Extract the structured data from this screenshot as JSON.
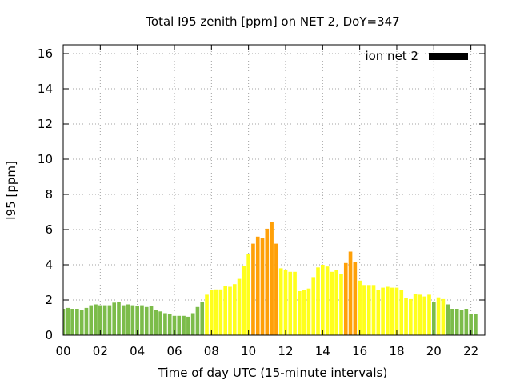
{
  "chart_data": {
    "type": "bar",
    "title": "Total I95 zenith [ppm] on NET 2, DoY=347",
    "xlabel": "Time of day UTC (15-minute intervals)",
    "ylabel": "I95 [ppm]",
    "xlim": [
      0,
      22.75
    ],
    "ylim": [
      0,
      16.5
    ],
    "x_ticks": [
      0,
      2,
      4,
      6,
      8,
      10,
      12,
      14,
      16,
      18,
      20,
      22
    ],
    "x_tick_labels": [
      "00",
      "02",
      "04",
      "06",
      "08",
      "10",
      "12",
      "14",
      "16",
      "18",
      "20",
      "22"
    ],
    "y_ticks": [
      0,
      2,
      4,
      6,
      8,
      10,
      12,
      14,
      16
    ],
    "y_tick_labels": [
      "0",
      "2",
      "4",
      "6",
      "8",
      "10",
      "12",
      "14",
      "16"
    ],
    "grid": true,
    "legend": {
      "label": "ion net 2",
      "position": "top-right",
      "color": "#000000"
    },
    "interval_hours": 0.25,
    "bar_width_hours": 0.2,
    "color_classes": [
      {
        "name": "low",
        "color": "#7cbc4a"
      },
      {
        "name": "moderate",
        "color": "#ffff1c"
      },
      {
        "name": "high",
        "color": "#ffa008"
      }
    ],
    "values": [
      1.5,
      1.55,
      1.5,
      1.5,
      1.45,
      1.55,
      1.7,
      1.75,
      1.7,
      1.7,
      1.7,
      1.85,
      1.9,
      1.7,
      1.75,
      1.7,
      1.65,
      1.7,
      1.6,
      1.65,
      1.45,
      1.35,
      1.25,
      1.2,
      1.1,
      1.1,
      1.1,
      1.05,
      1.25,
      1.6,
      1.9,
      2.3,
      2.55,
      2.6,
      2.6,
      2.8,
      2.75,
      2.9,
      3.2,
      3.95,
      4.6,
      5.2,
      5.6,
      5.5,
      6.05,
      6.45,
      5.2,
      3.8,
      3.7,
      3.6,
      3.6,
      2.5,
      2.55,
      2.65,
      3.3,
      3.85,
      4.0,
      3.9,
      3.6,
      3.7,
      3.5,
      4.1,
      4.75,
      4.15,
      3.1,
      2.85,
      2.85,
      2.85,
      2.55,
      2.7,
      2.75,
      2.7,
      2.7,
      2.55,
      2.1,
      2.05,
      2.35,
      2.3,
      2.2,
      2.3,
      1.9,
      2.15,
      2.05,
      1.75,
      1.5,
      1.5,
      1.45,
      1.5,
      1.2,
      1.2
    ],
    "value_classes": [
      "low",
      "low",
      "low",
      "low",
      "low",
      "low",
      "low",
      "low",
      "low",
      "low",
      "low",
      "low",
      "low",
      "low",
      "low",
      "low",
      "low",
      "low",
      "low",
      "low",
      "low",
      "low",
      "low",
      "low",
      "low",
      "low",
      "low",
      "low",
      "low",
      "low",
      "low",
      "moderate",
      "moderate",
      "moderate",
      "moderate",
      "moderate",
      "moderate",
      "moderate",
      "moderate",
      "moderate",
      "moderate",
      "high",
      "high",
      "high",
      "high",
      "high",
      "high",
      "moderate",
      "moderate",
      "moderate",
      "moderate",
      "moderate",
      "moderate",
      "moderate",
      "moderate",
      "moderate",
      "moderate",
      "moderate",
      "moderate",
      "moderate",
      "moderate",
      "high",
      "high",
      "high",
      "moderate",
      "moderate",
      "moderate",
      "moderate",
      "moderate",
      "moderate",
      "moderate",
      "moderate",
      "moderate",
      "moderate",
      "moderate",
      "moderate",
      "moderate",
      "moderate",
      "moderate",
      "moderate",
      "low",
      "moderate",
      "moderate",
      "low",
      "low",
      "low",
      "low",
      "low",
      "low",
      "low"
    ]
  }
}
